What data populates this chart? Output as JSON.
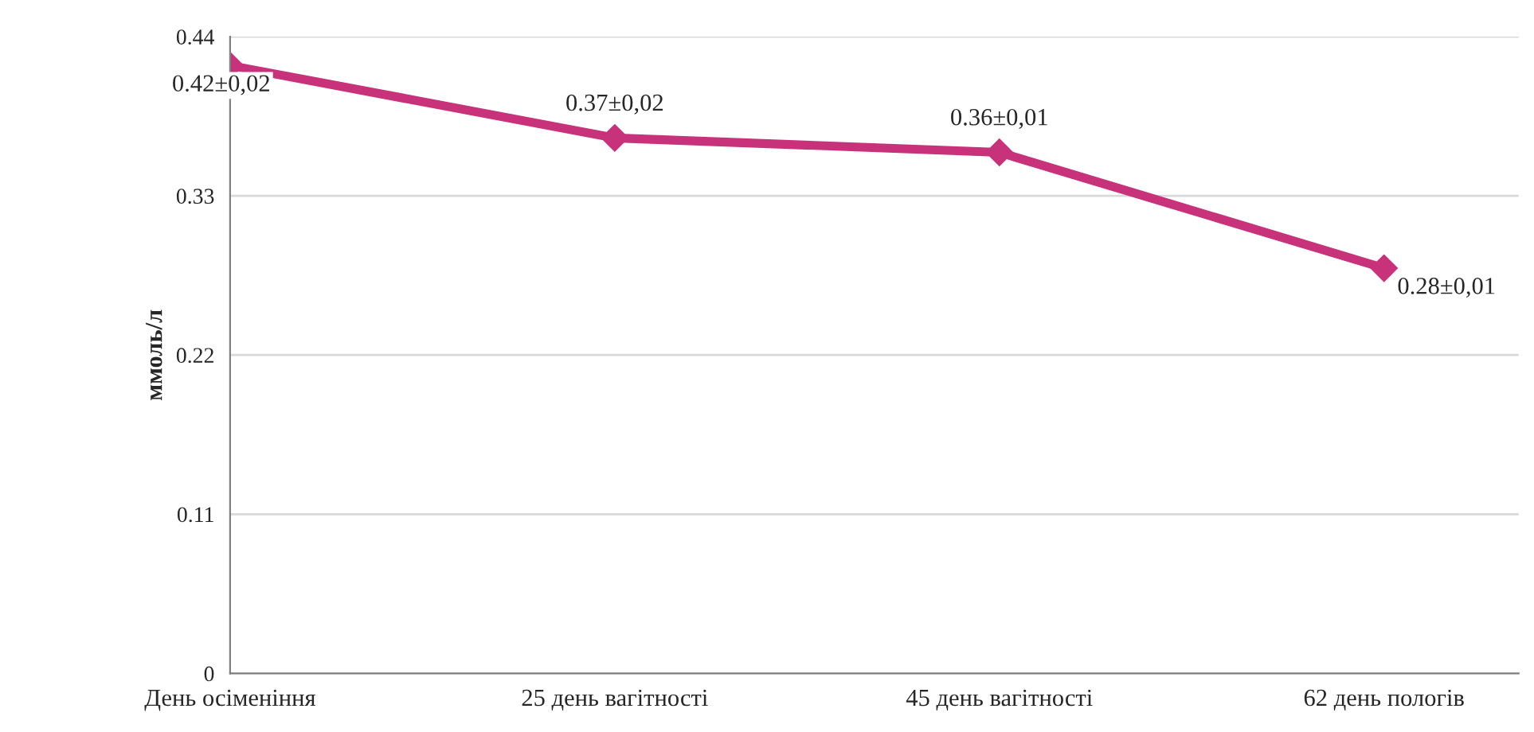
{
  "chart_data": {
    "type": "line",
    "ylabel": "ммоль/л",
    "categories": [
      "День осіменіння",
      "25 день вагітності",
      "45 день вагітності",
      "62 день пологів"
    ],
    "series": [
      {
        "color": "#c8327a",
        "values": [
          0.42,
          0.37,
          0.36,
          0.28
        ],
        "value_labels": [
          "0.42±0,02",
          "0.37±0,02",
          "0.36±0,01",
          "0.28±0,01"
        ]
      }
    ],
    "ylim": [
      0,
      0.44
    ],
    "yticks": [
      0,
      0.11,
      0.22,
      0.33,
      0.44
    ],
    "grid": "y",
    "marker": "diamond",
    "line_style": "solid",
    "legend": false
  }
}
